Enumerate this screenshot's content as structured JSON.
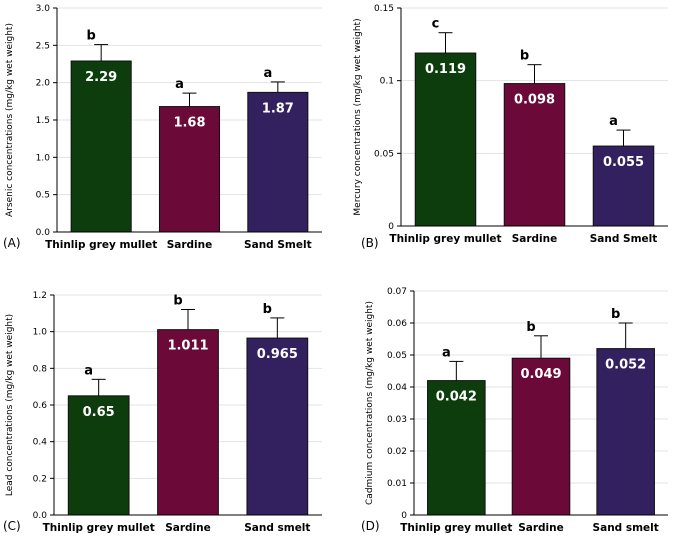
{
  "chart_data": [
    {
      "type": "bar",
      "panel_label": "(A)",
      "categories": [
        "Thinlip grey mullet",
        "Sardine",
        "Sand Smelt"
      ],
      "values": [
        2.29,
        1.68,
        1.87
      ],
      "value_labels": [
        "2.29",
        "1.68",
        "1.87"
      ],
      "errors": [
        0.22,
        0.18,
        0.14
      ],
      "significance": [
        "b",
        "a",
        "a"
      ],
      "colors": [
        "#0d3d0d",
        "#6b0a38",
        "#33205e"
      ],
      "ylabel": "Arsenic concentrations (mg/kg wet weight)",
      "ylim": [
        0,
        3.0
      ],
      "yticks": [
        0,
        0.5,
        1.0,
        1.5,
        2.0,
        2.5,
        3.0
      ],
      "ytick_labels": [
        "0.0",
        "0.5",
        "1.0",
        "1.5",
        "2.0",
        "2.5",
        "3.0"
      ],
      "grid": true
    },
    {
      "type": "bar",
      "panel_label": "(B)",
      "categories": [
        "Thinlip grey mullet",
        "Sardine",
        "Sand Smelt"
      ],
      "values": [
        0.119,
        0.098,
        0.055
      ],
      "value_labels": [
        "0.119",
        "0.098",
        "0.055"
      ],
      "errors": [
        0.014,
        0.013,
        0.011
      ],
      "significance": [
        "c",
        "b",
        "a"
      ],
      "colors": [
        "#0d3d0d",
        "#6b0a38",
        "#33205e"
      ],
      "ylabel": "Mercury concentrations (mg/kg wet weight)",
      "ylim": [
        0,
        0.15
      ],
      "yticks": [
        0,
        0.05,
        0.1,
        0.15
      ],
      "ytick_labels": [
        "0",
        "0.05",
        "0.1",
        "0.15"
      ],
      "grid": true
    },
    {
      "type": "bar",
      "panel_label": "(C)",
      "categories": [
        "Thinlip grey mullet",
        "Sardine",
        "Sand smelt"
      ],
      "values": [
        0.65,
        1.011,
        0.965
      ],
      "value_labels": [
        "0.65",
        "1.011",
        "0.965"
      ],
      "errors": [
        0.09,
        0.11,
        0.11
      ],
      "significance": [
        "a",
        "b",
        "b"
      ],
      "colors": [
        "#0d3d0d",
        "#6b0a38",
        "#33205e"
      ],
      "ylabel": "Lead concentrations (mg/kg wet weight)",
      "ylim": [
        0,
        1.2
      ],
      "yticks": [
        0,
        0.2,
        0.4,
        0.6,
        0.8,
        1.0,
        1.2
      ],
      "ytick_labels": [
        "0.0",
        "0.2",
        "0.4",
        "0.6",
        "0.8",
        "1.0",
        "1.2"
      ],
      "grid": true
    },
    {
      "type": "bar",
      "panel_label": "(D)",
      "categories": [
        "Thinlip grey mullet",
        "Sardine",
        "Sand smelt"
      ],
      "values": [
        0.042,
        0.049,
        0.052
      ],
      "value_labels": [
        "0.042",
        "0.049",
        "0.052"
      ],
      "errors": [
        0.006,
        0.007,
        0.008
      ],
      "significance": [
        "a",
        "b",
        "b"
      ],
      "colors": [
        "#0d3d0d",
        "#6b0a38",
        "#33205e"
      ],
      "ylabel": "Cadmium concentrations (mg/kg wet weight)",
      "ylim": [
        0,
        0.07
      ],
      "yticks": [
        0,
        0.01,
        0.02,
        0.03,
        0.04,
        0.05,
        0.06,
        0.07
      ],
      "ytick_labels": [
        "0",
        "0.01",
        "0.02",
        "0.03",
        "0.04",
        "0.05",
        "0.06",
        "0.07"
      ],
      "grid": true
    }
  ]
}
